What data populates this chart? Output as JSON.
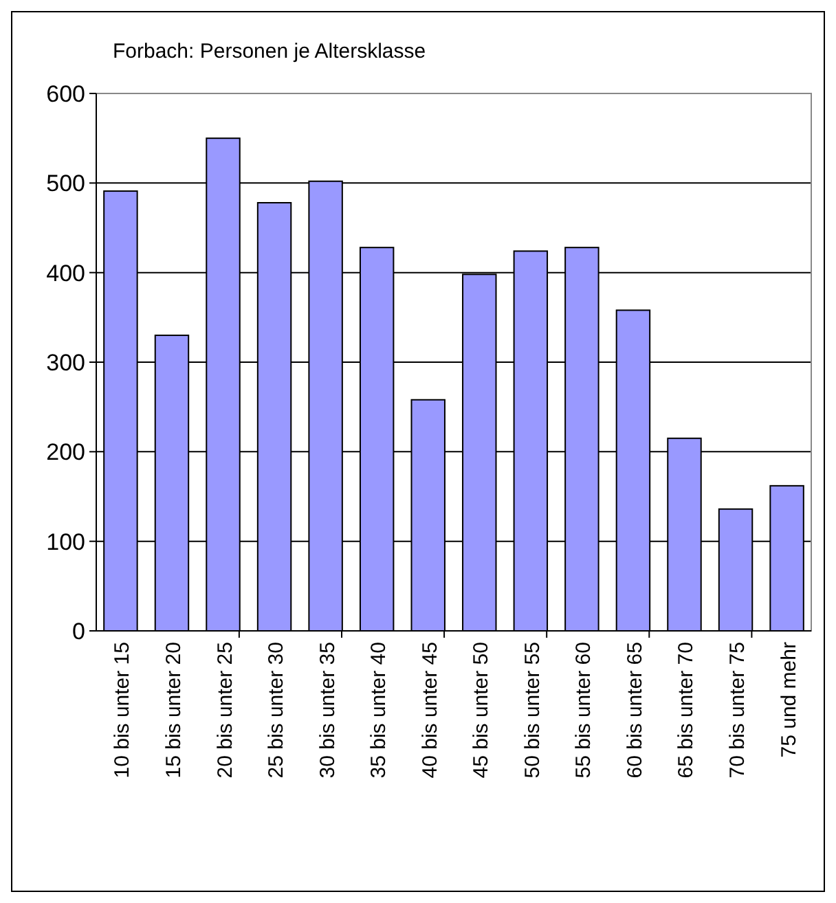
{
  "chart_data": {
    "type": "bar",
    "title": "Forbach: Personen je Altersklasse",
    "categories": [
      "10 bis unter 15",
      "15 bis unter 20",
      "20 bis unter 25",
      "25 bis unter 30",
      "30 bis unter 35",
      "35 bis unter 40",
      "40 bis unter 45",
      "45 bis unter 50",
      "50 bis unter 55",
      "55 bis unter 60",
      "60 bis unter 65",
      "65 bis unter 70",
      "70 bis unter 75",
      "75 und mehr"
    ],
    "values": [
      491,
      330,
      550,
      478,
      502,
      428,
      258,
      398,
      424,
      428,
      358,
      215,
      136,
      162
    ],
    "color": "#9999ff",
    "ylim": [
      0,
      600
    ],
    "yticks": [
      0,
      100,
      200,
      300,
      400,
      500,
      600
    ],
    "grid": "y"
  }
}
